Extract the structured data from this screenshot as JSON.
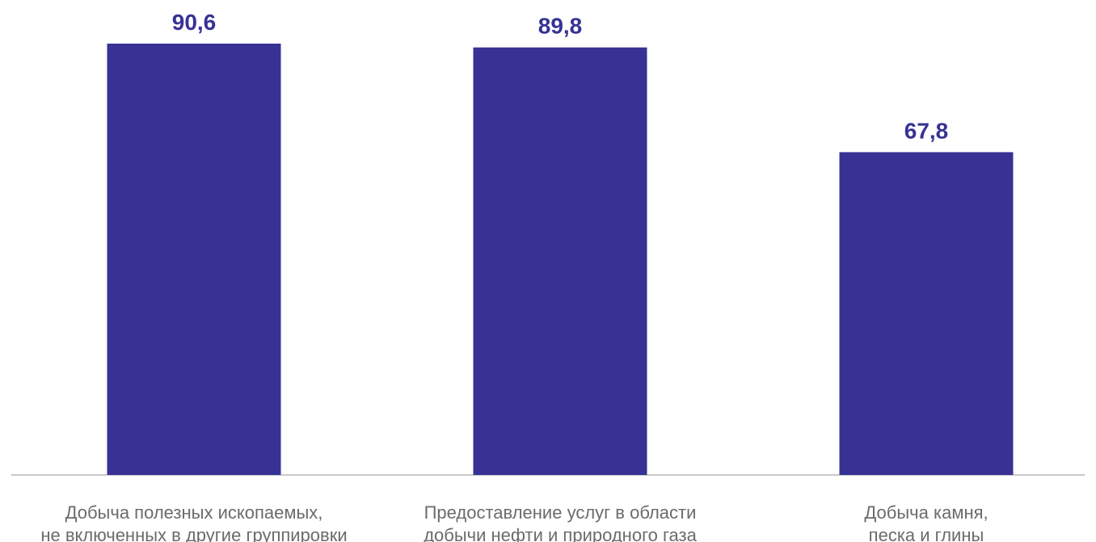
{
  "chart_data": {
    "type": "bar",
    "categories": [
      [
        "Добыча полезных ископаемых,",
        "не включенных в другие группировки"
      ],
      [
        "Предоставление услуг в области",
        "добычи нефти и природного газа"
      ],
      [
        "Добыча камня,",
        "песка и глины"
      ]
    ],
    "values": [
      90.6,
      89.8,
      67.8
    ],
    "value_labels": [
      "90,6",
      "89,8",
      "67,8"
    ],
    "ylim": [
      0,
      100
    ],
    "grid": false,
    "legend": "none",
    "colors": {
      "bar": "#373294",
      "value_label": "#373294",
      "category_label": "#6b6b6b",
      "axis": "#c8c8c8"
    }
  }
}
